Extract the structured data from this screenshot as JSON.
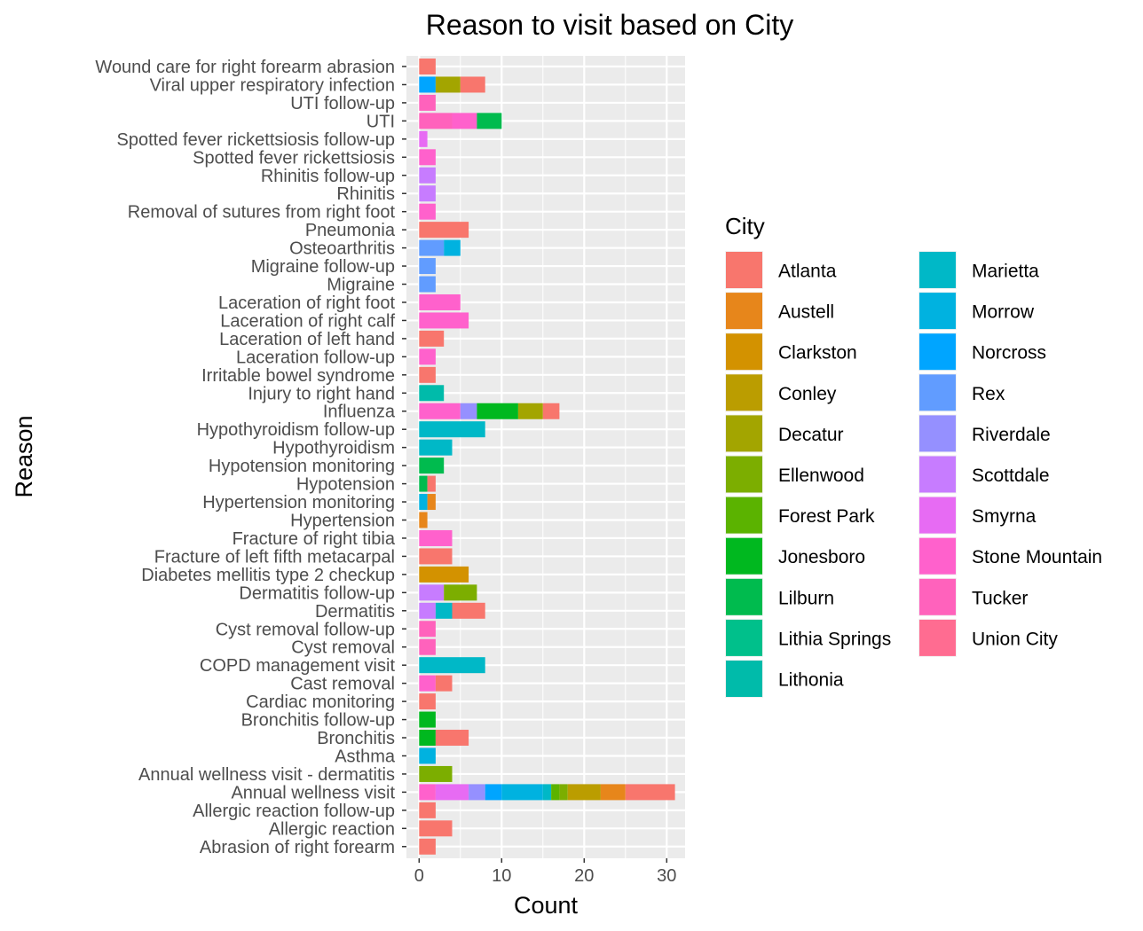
{
  "chart_data": {
    "type": "bar",
    "orientation": "horizontal",
    "stacked": true,
    "title": "Reason to visit based on City",
    "xlabel": "Count",
    "ylabel": "Reason",
    "xlim": [
      0,
      32
    ],
    "x_ticks": [
      0,
      10,
      20,
      30
    ],
    "grid": true,
    "legend_title": "City",
    "legend_position": "right",
    "legend_columns": 2,
    "cities": [
      {
        "name": "Atlanta",
        "color": "#F8766D"
      },
      {
        "name": "Austell",
        "color": "#E7861B"
      },
      {
        "name": "Clarkston",
        "color": "#D39200"
      },
      {
        "name": "Conley",
        "color": "#BB9D00"
      },
      {
        "name": "Decatur",
        "color": "#A3A500"
      },
      {
        "name": "Ellenwood",
        "color": "#7CAE00"
      },
      {
        "name": "Forest Park",
        "color": "#5BB300"
      },
      {
        "name": "Jonesboro",
        "color": "#00B81F"
      },
      {
        "name": "Lilburn",
        "color": "#00BB4E"
      },
      {
        "name": "Lithia Springs",
        "color": "#00C08B"
      },
      {
        "name": "Lithonia",
        "color": "#00BBAA"
      },
      {
        "name": "Marietta",
        "color": "#00B8C7"
      },
      {
        "name": "Morrow",
        "color": "#00B2E0"
      },
      {
        "name": "Norcross",
        "color": "#00A5FF"
      },
      {
        "name": "Rex",
        "color": "#619CFF"
      },
      {
        "name": "Riverdale",
        "color": "#9590FF"
      },
      {
        "name": "Scottdale",
        "color": "#C77CFF"
      },
      {
        "name": "Smyrna",
        "color": "#E76BF3"
      },
      {
        "name": "Stone Mountain",
        "color": "#FF61CC"
      },
      {
        "name": "Tucker",
        "color": "#FF62BC"
      },
      {
        "name": "Union City",
        "color": "#FF6C91"
      }
    ],
    "reasons": [
      {
        "label": "Wound care for right forearm abrasion",
        "segments": [
          {
            "city": "Atlanta",
            "value": 2
          }
        ]
      },
      {
        "label": "Viral upper respiratory infection",
        "segments": [
          {
            "city": "Norcross",
            "value": 2
          },
          {
            "city": "Decatur",
            "value": 3
          },
          {
            "city": "Atlanta",
            "value": 3
          }
        ]
      },
      {
        "label": "UTI follow-up",
        "segments": [
          {
            "city": "Tucker",
            "value": 2
          }
        ]
      },
      {
        "label": "UTI",
        "segments": [
          {
            "city": "Tucker",
            "value": 4
          },
          {
            "city": "Stone Mountain",
            "value": 3
          },
          {
            "city": "Lilburn",
            "value": 3
          }
        ]
      },
      {
        "label": "Spotted fever rickettsiosis follow-up",
        "segments": [
          {
            "city": "Smyrna",
            "value": 1
          }
        ]
      },
      {
        "label": "Spotted fever rickettsiosis",
        "segments": [
          {
            "city": "Stone Mountain",
            "value": 2
          }
        ]
      },
      {
        "label": "Rhinitis follow-up",
        "segments": [
          {
            "city": "Scottdale",
            "value": 2
          }
        ]
      },
      {
        "label": "Rhinitis",
        "segments": [
          {
            "city": "Scottdale",
            "value": 2
          }
        ]
      },
      {
        "label": "Removal of sutures from right foot",
        "segments": [
          {
            "city": "Stone Mountain",
            "value": 2
          }
        ]
      },
      {
        "label": "Pneumonia",
        "segments": [
          {
            "city": "Atlanta",
            "value": 6
          }
        ]
      },
      {
        "label": "Osteoarthritis",
        "segments": [
          {
            "city": "Rex",
            "value": 3
          },
          {
            "city": "Morrow",
            "value": 2
          }
        ]
      },
      {
        "label": "Migraine follow-up",
        "segments": [
          {
            "city": "Rex",
            "value": 2
          }
        ]
      },
      {
        "label": "Migraine",
        "segments": [
          {
            "city": "Rex",
            "value": 2
          }
        ]
      },
      {
        "label": "Laceration of right foot",
        "segments": [
          {
            "city": "Stone Mountain",
            "value": 5
          }
        ]
      },
      {
        "label": "Laceration of right calf",
        "segments": [
          {
            "city": "Stone Mountain",
            "value": 6
          }
        ]
      },
      {
        "label": "Laceration of left hand",
        "segments": [
          {
            "city": "Atlanta",
            "value": 3
          }
        ]
      },
      {
        "label": "Laceration follow-up",
        "segments": [
          {
            "city": "Stone Mountain",
            "value": 2
          }
        ]
      },
      {
        "label": "Irritable bowel syndrome",
        "segments": [
          {
            "city": "Atlanta",
            "value": 2
          }
        ]
      },
      {
        "label": "Injury to right hand",
        "segments": [
          {
            "city": "Lithonia",
            "value": 3
          }
        ]
      },
      {
        "label": "Influenza",
        "segments": [
          {
            "city": "Stone Mountain",
            "value": 5
          },
          {
            "city": "Riverdale",
            "value": 2
          },
          {
            "city": "Jonesboro",
            "value": 5
          },
          {
            "city": "Decatur",
            "value": 3
          },
          {
            "city": "Atlanta",
            "value": 2
          }
        ]
      },
      {
        "label": "Hypothyroidism follow-up",
        "segments": [
          {
            "city": "Marietta",
            "value": 8
          }
        ]
      },
      {
        "label": "Hypothyroidism",
        "segments": [
          {
            "city": "Marietta",
            "value": 4
          }
        ]
      },
      {
        "label": "Hypotension monitoring",
        "segments": [
          {
            "city": "Lilburn",
            "value": 3
          }
        ]
      },
      {
        "label": "Hypotension",
        "segments": [
          {
            "city": "Lilburn",
            "value": 1
          },
          {
            "city": "Atlanta",
            "value": 1
          }
        ]
      },
      {
        "label": "Hypertension monitoring",
        "segments": [
          {
            "city": "Morrow",
            "value": 1
          },
          {
            "city": "Austell",
            "value": 1
          }
        ]
      },
      {
        "label": "Hypertension",
        "segments": [
          {
            "city": "Austell",
            "value": 1
          }
        ]
      },
      {
        "label": "Fracture of right tibia",
        "segments": [
          {
            "city": "Stone Mountain",
            "value": 4
          }
        ]
      },
      {
        "label": "Fracture of left fifth metacarpal",
        "segments": [
          {
            "city": "Atlanta",
            "value": 4
          }
        ]
      },
      {
        "label": "Diabetes mellitis type 2 checkup",
        "segments": [
          {
            "city": "Clarkston",
            "value": 6
          }
        ]
      },
      {
        "label": "Dermatitis follow-up",
        "segments": [
          {
            "city": "Scottdale",
            "value": 3
          },
          {
            "city": "Ellenwood",
            "value": 4
          }
        ]
      },
      {
        "label": "Dermatitis",
        "segments": [
          {
            "city": "Scottdale",
            "value": 2
          },
          {
            "city": "Marietta",
            "value": 2
          },
          {
            "city": "Atlanta",
            "value": 4
          }
        ]
      },
      {
        "label": "Cyst removal follow-up",
        "segments": [
          {
            "city": "Tucker",
            "value": 2
          }
        ]
      },
      {
        "label": "Cyst removal",
        "segments": [
          {
            "city": "Tucker",
            "value": 2
          }
        ]
      },
      {
        "label": "COPD management visit",
        "segments": [
          {
            "city": "Marietta",
            "value": 8
          }
        ]
      },
      {
        "label": "Cast removal",
        "segments": [
          {
            "city": "Stone Mountain",
            "value": 2
          },
          {
            "city": "Atlanta",
            "value": 2
          }
        ]
      },
      {
        "label": "Cardiac monitoring",
        "segments": [
          {
            "city": "Atlanta",
            "value": 2
          }
        ]
      },
      {
        "label": "Bronchitis follow-up",
        "segments": [
          {
            "city": "Jonesboro",
            "value": 2
          }
        ]
      },
      {
        "label": "Bronchitis",
        "segments": [
          {
            "city": "Jonesboro",
            "value": 2
          },
          {
            "city": "Atlanta",
            "value": 4
          }
        ]
      },
      {
        "label": "Asthma",
        "segments": [
          {
            "city": "Morrow",
            "value": 2
          }
        ]
      },
      {
        "label": "Annual wellness visit - dermatitis",
        "segments": [
          {
            "city": "Ellenwood",
            "value": 4
          }
        ]
      },
      {
        "label": "Annual wellness visit",
        "segments": [
          {
            "city": "Stone Mountain",
            "value": 2
          },
          {
            "city": "Smyrna",
            "value": 4
          },
          {
            "city": "Riverdale",
            "value": 2
          },
          {
            "city": "Norcross",
            "value": 2
          },
          {
            "city": "Morrow",
            "value": 5
          },
          {
            "city": "Marietta",
            "value": 1
          },
          {
            "city": "Forest Park",
            "value": 1
          },
          {
            "city": "Ellenwood",
            "value": 1
          },
          {
            "city": "Conley",
            "value": 4
          },
          {
            "city": "Austell",
            "value": 3
          },
          {
            "city": "Atlanta",
            "value": 6
          }
        ]
      },
      {
        "label": "Allergic reaction follow-up",
        "segments": [
          {
            "city": "Atlanta",
            "value": 2
          }
        ]
      },
      {
        "label": "Allergic reaction",
        "segments": [
          {
            "city": "Atlanta",
            "value": 4
          }
        ]
      },
      {
        "label": "Abrasion of right forearm",
        "segments": [
          {
            "city": "Atlanta",
            "value": 2
          }
        ]
      }
    ]
  }
}
